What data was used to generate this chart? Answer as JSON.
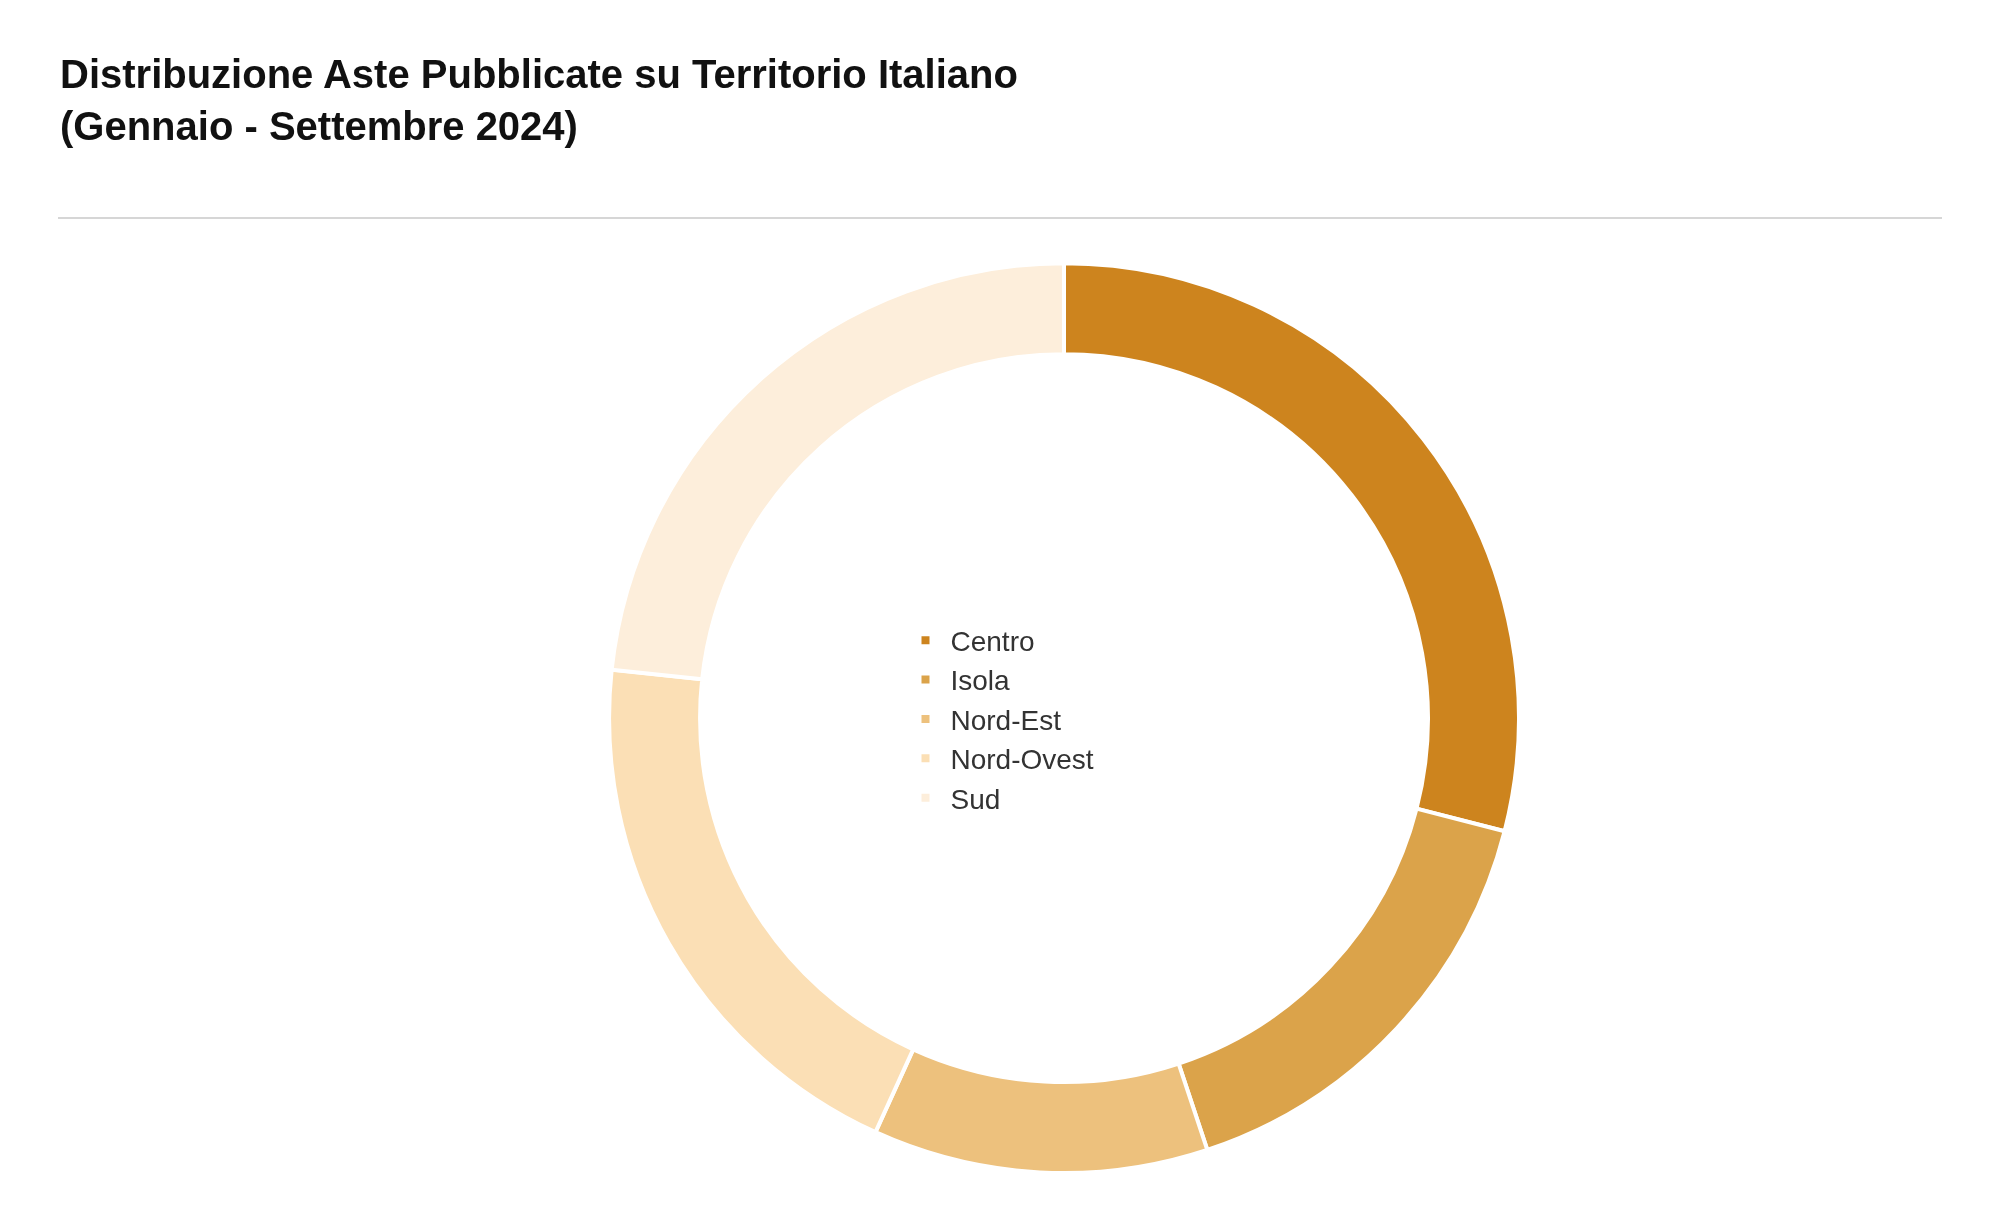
{
  "chart_data": {
    "type": "donut",
    "title": "Distribuzione Aste Pubblicate su Territorio Italiano\n(Gennaio - Settembre 2024)",
    "categories": [
      "Centro",
      "Isola",
      "Nord-Est",
      "Nord-Ovest",
      "Sud"
    ],
    "values": [
      29.0,
      15.9,
      11.9,
      19.9,
      23.3
    ],
    "colors": [
      "#cd841e",
      "#dba34a",
      "#edc17d",
      "#fbdfb5",
      "#fdeedb"
    ],
    "legend": "center"
  }
}
